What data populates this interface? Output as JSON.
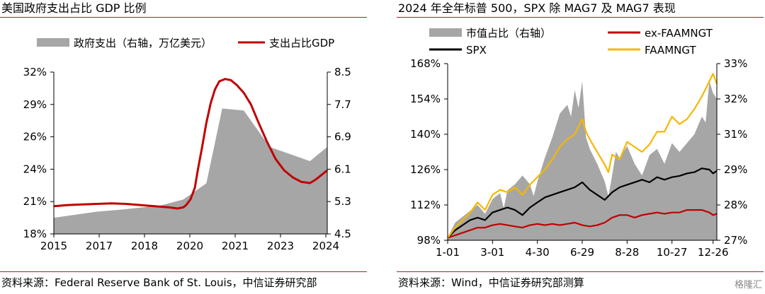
{
  "left": {
    "title": "美国政府支出占比 GDP 比例",
    "source": "资料来源：Federal Reserve Bank of St. Louis，中信证券研究部"
  },
  "right": {
    "title": "2024 年全年标普 500，SPX 除 MAG7 及 MAG7 表现",
    "source": "资料来源：Wind，中信证券研究部测算"
  },
  "logo": "格隆汇",
  "colors": {
    "red": "#c00000",
    "gray": "#a6a6a6",
    "black": "#000000",
    "gold": "#f5b800",
    "rule": "#a6212a"
  },
  "chart_data": [
    {
      "type": "area",
      "legend": [
        "政府支出（右轴，万亿美元）",
        "支出占比GDP"
      ],
      "x_ticks": [
        "2015",
        "2017",
        "2018",
        "2020",
        "2021",
        "2023",
        "2024"
      ],
      "y_left_ticks": [
        "32%",
        "29%",
        "26%",
        "24%",
        "21%",
        "18%"
      ],
      "y_right_ticks": [
        "8.5",
        "7.7",
        "6.9",
        "6.1",
        "5.3",
        "4.5"
      ],
      "ylim_left": [
        18,
        32
      ],
      "ylim_right": [
        4.5,
        8.5
      ],
      "xlim": [
        2015,
        2024.5
      ],
      "series": [
        {
          "name": "政府支出（右轴，万亿美元）",
          "axis": "right",
          "kind": "area",
          "x": [
            2015,
            2015.8,
            2016.5,
            2017.3,
            2018,
            2018.7,
            2019.5,
            2020.3,
            2020.85,
            2021.6,
            2022.5,
            2023.3,
            2023.9,
            2024.5
          ],
          "y": [
            4.9,
            4.98,
            5.05,
            5.1,
            5.15,
            5.2,
            5.35,
            5.75,
            7.6,
            7.55,
            6.65,
            6.45,
            6.3,
            6.65
          ]
        },
        {
          "name": "支出占比GDP",
          "axis": "left",
          "kind": "line",
          "x": [
            2015,
            2015.5,
            2016,
            2016.5,
            2017,
            2017.5,
            2018,
            2018.5,
            2019,
            2019.3,
            2019.5,
            2019.6,
            2019.75,
            2019.9,
            2020.0,
            2020.15,
            2020.3,
            2020.45,
            2020.6,
            2020.75,
            2020.95,
            2021.15,
            2021.35,
            2021.6,
            2021.85,
            2022.1,
            2022.4,
            2022.7,
            2023.0,
            2023.3,
            2023.6,
            2023.9,
            2024.1,
            2024.3,
            2024.5
          ],
          "y": [
            20.4,
            20.5,
            20.55,
            20.6,
            20.65,
            20.6,
            20.5,
            20.4,
            20.3,
            20.2,
            20.3,
            20.5,
            21.0,
            22.0,
            23.5,
            25.5,
            27.6,
            29.3,
            30.5,
            31.2,
            31.4,
            31.3,
            30.9,
            30.2,
            29.2,
            27.7,
            26.0,
            24.5,
            23.5,
            22.9,
            22.5,
            22.4,
            22.7,
            23.1,
            23.5
          ]
        }
      ]
    },
    {
      "type": "line",
      "legend": [
        "市值占比（右轴）",
        "ex-FAAMNGT",
        "SPX",
        "FAAMNGT"
      ],
      "x_ticks": [
        "1-01",
        "3-01",
        "4-30",
        "6-29",
        "8-28",
        "10-27",
        "12-26"
      ],
      "y_left_ticks": [
        "168%",
        "154%",
        "140%",
        "126%",
        "112%",
        "98%"
      ],
      "y_right_ticks": [
        "33%",
        "32%",
        "31%",
        "29%",
        "28%",
        "27%"
      ],
      "ylim_left": [
        98,
        168
      ],
      "ylim_right": [
        27,
        33
      ],
      "xlim": [
        0,
        360
      ],
      "series": [
        {
          "name": "市值占比（右轴）",
          "axis": "right",
          "kind": "area",
          "x": [
            0,
            10,
            20,
            30,
            40,
            50,
            60,
            70,
            75,
            80,
            90,
            100,
            110,
            115,
            120,
            130,
            140,
            150,
            160,
            165,
            170,
            175,
            180,
            185,
            190,
            200,
            210,
            215,
            220,
            225,
            230,
            240,
            250,
            260,
            270,
            280,
            290,
            300,
            310,
            320,
            330,
            340,
            345,
            350,
            355,
            360
          ],
          "y": [
            27.1,
            27.6,
            27.8,
            28.0,
            28.2,
            27.9,
            28.4,
            28.6,
            28.1,
            28.7,
            28.9,
            29.2,
            28.9,
            28.5,
            29.0,
            29.8,
            30.5,
            31.3,
            31.6,
            31.2,
            32.1,
            31.5,
            32.4,
            30.5,
            30.1,
            29.6,
            29.0,
            28.5,
            29.2,
            30.0,
            29.8,
            30.2,
            29.6,
            29.2,
            29.9,
            30.1,
            29.6,
            30.3,
            30.0,
            30.3,
            30.6,
            31.2,
            31.0,
            32.4,
            32.0,
            31.8
          ]
        },
        {
          "name": "SPX",
          "axis": "left",
          "kind": "line",
          "x": [
            0,
            10,
            20,
            30,
            40,
            50,
            60,
            70,
            80,
            90,
            100,
            110,
            120,
            130,
            140,
            150,
            160,
            170,
            180,
            190,
            200,
            210,
            220,
            230,
            240,
            250,
            260,
            270,
            280,
            290,
            300,
            310,
            320,
            330,
            340,
            350,
            355,
            360
          ],
          "y": [
            99,
            102,
            104,
            106,
            107,
            106,
            109,
            110,
            111,
            110,
            108,
            111,
            113,
            115,
            116,
            117,
            118,
            119,
            121,
            118,
            116,
            114,
            117,
            119,
            120,
            121,
            122,
            121,
            123,
            122,
            123,
            123.5,
            124.5,
            125,
            126.5,
            126,
            124.5,
            125.5
          ]
        },
        {
          "name": "ex-FAAMNGT",
          "axis": "left",
          "kind": "line",
          "x": [
            0,
            10,
            20,
            30,
            40,
            50,
            60,
            70,
            80,
            90,
            100,
            110,
            120,
            130,
            140,
            150,
            160,
            170,
            180,
            190,
            200,
            210,
            220,
            230,
            240,
            250,
            260,
            270,
            280,
            290,
            300,
            310,
            320,
            330,
            340,
            350,
            355,
            360
          ],
          "y": [
            99,
            100,
            101,
            102,
            103,
            103,
            104,
            104.5,
            104,
            103.5,
            103,
            104,
            104.5,
            104,
            104.5,
            104,
            104.5,
            105,
            104,
            103.5,
            104,
            105,
            107,
            108,
            108,
            107,
            108,
            108.5,
            109,
            108.5,
            109,
            109,
            110,
            110,
            110,
            109,
            108,
            108.5
          ]
        },
        {
          "name": "FAAMNGT",
          "axis": "left",
          "kind": "line",
          "x": [
            0,
            10,
            20,
            30,
            40,
            50,
            60,
            70,
            80,
            90,
            100,
            110,
            120,
            130,
            140,
            150,
            160,
            170,
            180,
            185,
            190,
            200,
            210,
            215,
            220,
            230,
            240,
            250,
            260,
            270,
            280,
            290,
            300,
            310,
            320,
            330,
            340,
            345,
            350,
            355,
            360
          ],
          "y": [
            99,
            103,
            106,
            109,
            113,
            110,
            116,
            118,
            117,
            119,
            116,
            120,
            123,
            126,
            130,
            135,
            138,
            140,
            146,
            141,
            138,
            133,
            128,
            125,
            132,
            130,
            137,
            135,
            133,
            136,
            141,
            141,
            147,
            144,
            146,
            150,
            155,
            158,
            161,
            164,
            160
          ]
        }
      ]
    }
  ]
}
